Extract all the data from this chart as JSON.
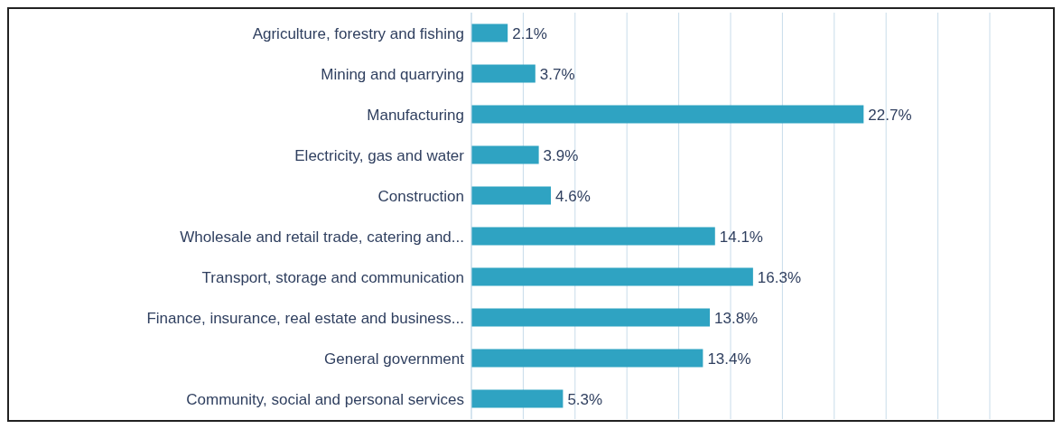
{
  "chart_data": {
    "type": "bar",
    "orientation": "horizontal",
    "categories": [
      "Agriculture, forestry and fishing",
      "Mining and quarrying",
      "Manufacturing",
      "Electricity, gas and water",
      "Construction",
      "Wholesale and retail trade, catering and...",
      "Transport, storage and communication",
      "Finance, insurance, real estate and business...",
      "General government",
      "Community, social and personal services"
    ],
    "values": [
      2.1,
      3.7,
      22.7,
      3.9,
      4.6,
      14.1,
      16.3,
      13.8,
      13.4,
      5.3
    ],
    "value_labels": [
      "2.1%",
      "3.7%",
      "22.7%",
      "3.9%",
      "4.6%",
      "14.1%",
      "16.3%",
      "13.8%",
      "13.4%",
      "5.3%"
    ],
    "color": "#2fa3c2",
    "grid": "x",
    "tick_labels": "y"
  }
}
